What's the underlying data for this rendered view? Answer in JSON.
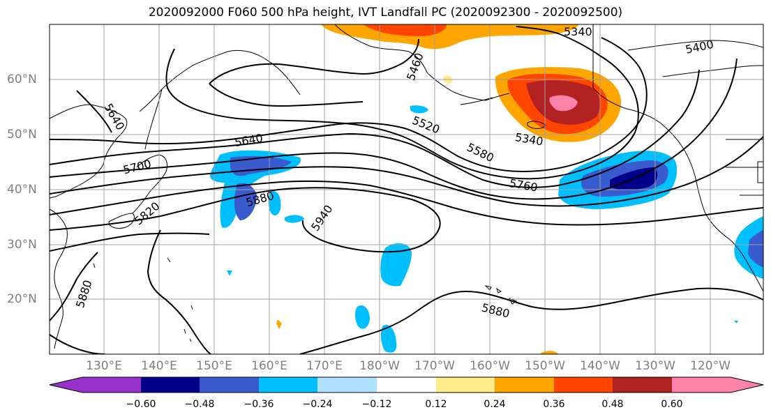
{
  "title": "2020092000 F060 500 hPa height, IVT Landfall PC (2020092300 - 2020092500)",
  "lat_labels": [
    "60°N",
    "50°N",
    "40°N",
    "30°N",
    "20°N"
  ],
  "lon_labels": [
    "130°E",
    "140°E",
    "150°E",
    "160°E",
    "170°E",
    "180°W",
    "170°W",
    "160°W",
    "150°W",
    "140°W",
    "130°W",
    "120°W"
  ],
  "contour_labels": [
    "5340",
    "5400",
    "5460",
    "5520",
    "5580",
    "5640",
    "5640",
    "5700",
    "5760",
    "5820",
    "5880",
    "5880",
    "5880",
    "5940",
    "5340"
  ],
  "colorbar": {
    "ticks": [
      "−0.60",
      "−0.48",
      "−0.36",
      "−0.24",
      "−0.12",
      "0.12",
      "0.24",
      "0.36",
      "0.48",
      "0.60"
    ],
    "colors": [
      "#9932cc",
      "#00008b",
      "#3a5bcd",
      "#00bfff",
      "#b0e2ff",
      "#ffffff",
      "#ffec8b",
      "#ffa500",
      "#ff4500",
      "#b22222",
      "#ff82ab",
      "#ff82ab"
    ]
  }
}
